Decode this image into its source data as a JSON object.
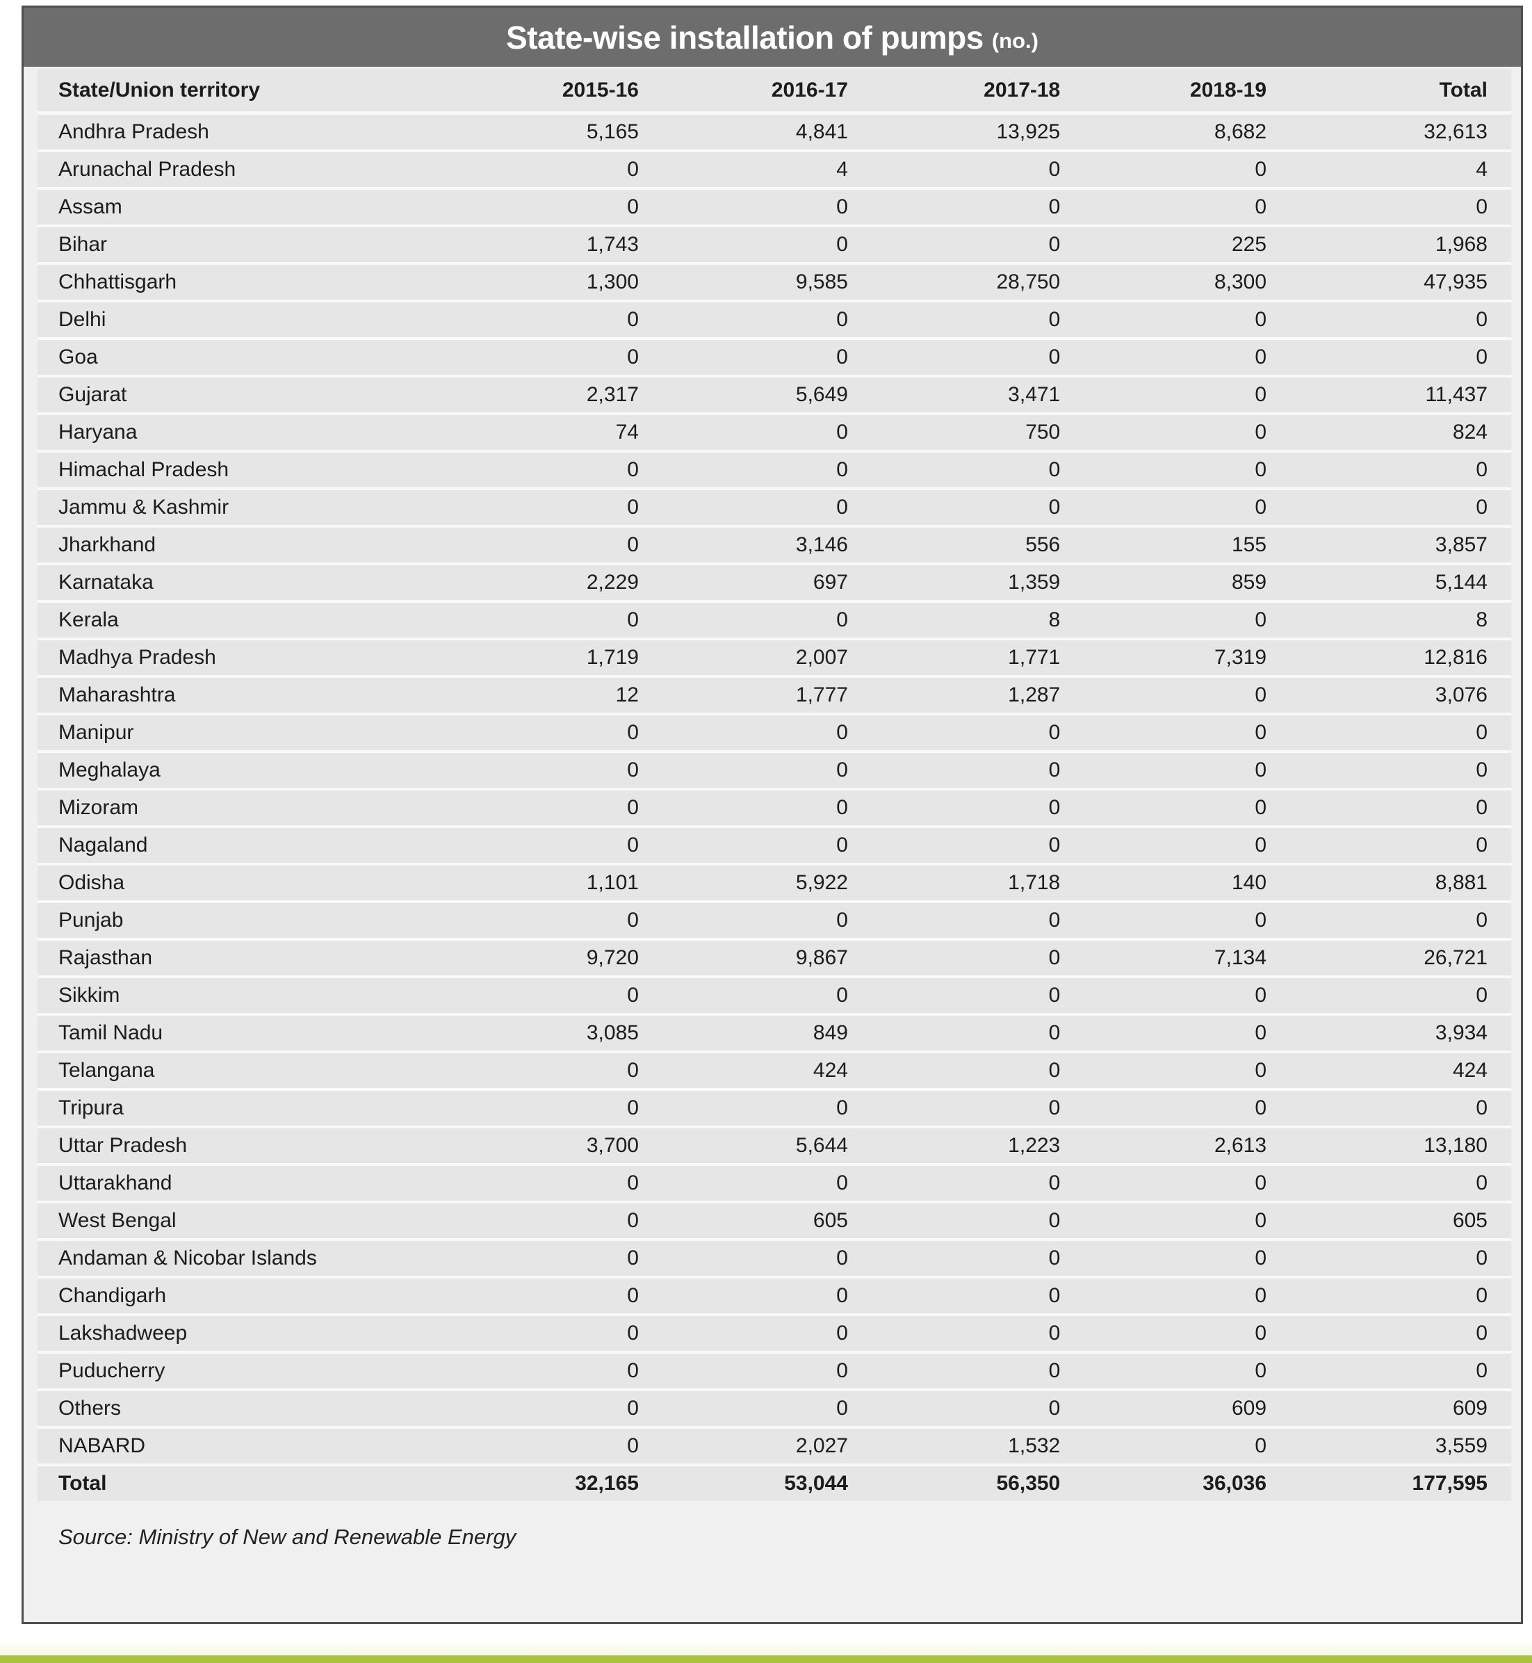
{
  "header": {
    "title": "State-wise installation of pumps",
    "unit": "(no.)"
  },
  "source": "Source: Ministry of New and Renewable Energy",
  "colors": {
    "title_bar_bg": "#6d6d6d",
    "title_text": "#ffffff",
    "panel_bg": "#f0f0f0",
    "row_bg": "#e6e6e6",
    "row_separator": "#f9f9f9",
    "panel_border": "#4f4f4f",
    "accent_bar": "#a9c23e",
    "text": "#1c1c1c"
  },
  "chart_data": {
    "type": "table",
    "title": "State-wise installation of pumps (no.)",
    "columns": [
      "State/Union territory",
      "2015-16",
      "2016-17",
      "2017-18",
      "2018-19",
      "Total"
    ],
    "rows": [
      [
        "Andhra Pradesh",
        5165,
        4841,
        13925,
        8682,
        32613
      ],
      [
        "Arunachal Pradesh",
        0,
        4,
        0,
        0,
        4
      ],
      [
        "Assam",
        0,
        0,
        0,
        0,
        0
      ],
      [
        "Bihar",
        1743,
        0,
        0,
        225,
        1968
      ],
      [
        "Chhattisgarh",
        1300,
        9585,
        28750,
        8300,
        47935
      ],
      [
        "Delhi",
        0,
        0,
        0,
        0,
        0
      ],
      [
        "Goa",
        0,
        0,
        0,
        0,
        0
      ],
      [
        "Gujarat",
        2317,
        5649,
        3471,
        0,
        11437
      ],
      [
        "Haryana",
        74,
        0,
        750,
        0,
        824
      ],
      [
        "Himachal Pradesh",
        0,
        0,
        0,
        0,
        0
      ],
      [
        "Jammu & Kashmir",
        0,
        0,
        0,
        0,
        0
      ],
      [
        "Jharkhand",
        0,
        3146,
        556,
        155,
        3857
      ],
      [
        "Karnataka",
        2229,
        697,
        1359,
        859,
        5144
      ],
      [
        "Kerala",
        0,
        0,
        8,
        0,
        8
      ],
      [
        "Madhya Pradesh",
        1719,
        2007,
        1771,
        7319,
        12816
      ],
      [
        "Maharashtra",
        12,
        1777,
        1287,
        0,
        3076
      ],
      [
        "Manipur",
        0,
        0,
        0,
        0,
        0
      ],
      [
        "Meghalaya",
        0,
        0,
        0,
        0,
        0
      ],
      [
        "Mizoram",
        0,
        0,
        0,
        0,
        0
      ],
      [
        "Nagaland",
        0,
        0,
        0,
        0,
        0
      ],
      [
        "Odisha",
        1101,
        5922,
        1718,
        140,
        8881
      ],
      [
        "Punjab",
        0,
        0,
        0,
        0,
        0
      ],
      [
        "Rajasthan",
        9720,
        9867,
        0,
        7134,
        26721
      ],
      [
        "Sikkim",
        0,
        0,
        0,
        0,
        0
      ],
      [
        "Tamil Nadu",
        3085,
        849,
        0,
        0,
        3934
      ],
      [
        "Telangana",
        0,
        424,
        0,
        0,
        424
      ],
      [
        "Tripura",
        0,
        0,
        0,
        0,
        0
      ],
      [
        "Uttar Pradesh",
        3700,
        5644,
        1223,
        2613,
        13180
      ],
      [
        "Uttarakhand",
        0,
        0,
        0,
        0,
        0
      ],
      [
        "West Bengal",
        0,
        605,
        0,
        0,
        605
      ],
      [
        "Andaman & Nicobar Islands",
        0,
        0,
        0,
        0,
        0
      ],
      [
        "Chandigarh",
        0,
        0,
        0,
        0,
        0
      ],
      [
        "Lakshadweep",
        0,
        0,
        0,
        0,
        0
      ],
      [
        "Puducherry",
        0,
        0,
        0,
        0,
        0
      ],
      [
        "Others",
        0,
        0,
        0,
        609,
        609
      ],
      [
        "NABARD",
        0,
        2027,
        1532,
        0,
        3559
      ]
    ],
    "totals": [
      "Total",
      32165,
      53044,
      56350,
      36036,
      177595
    ],
    "source": "Source: Ministry of New and Renewable Energy",
    "layout": {
      "grid": false,
      "row_striping": false,
      "numeric_alignment": "right"
    }
  }
}
